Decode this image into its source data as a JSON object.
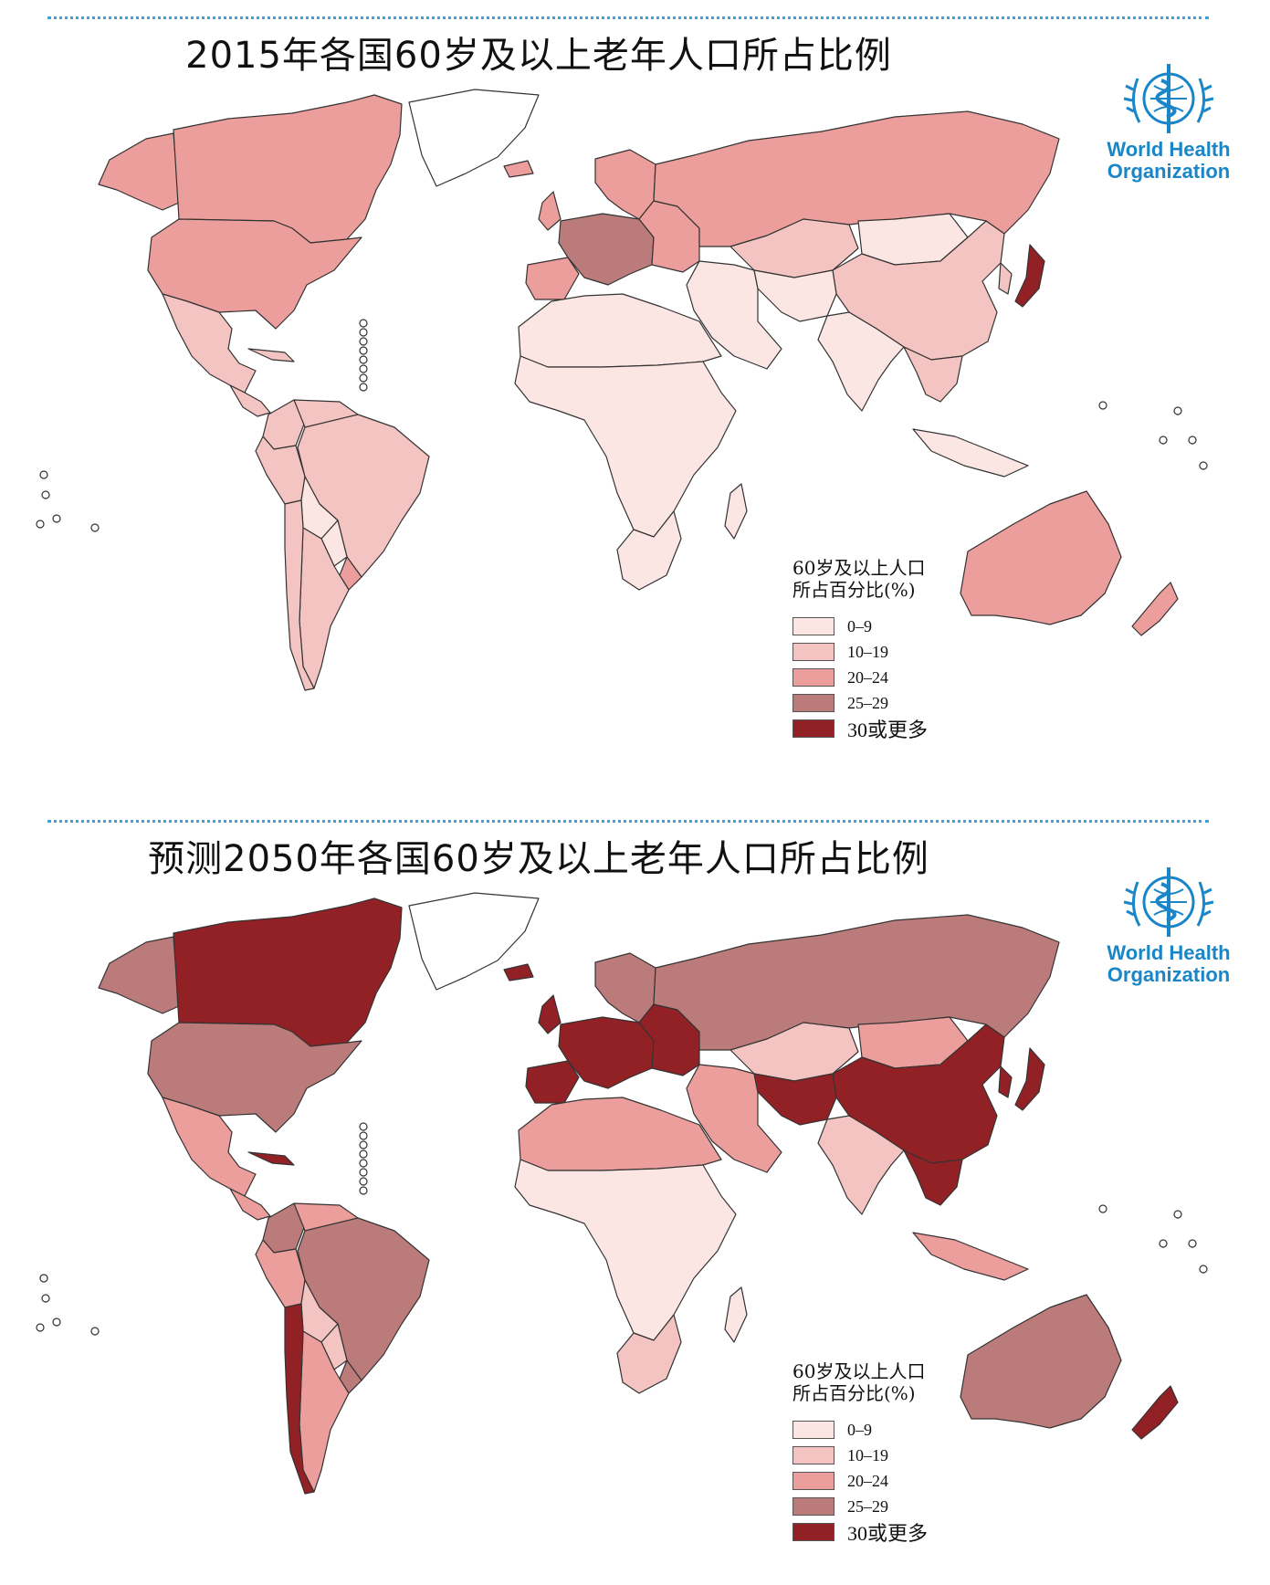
{
  "colors": {
    "c0": "#fbe6e4",
    "c1": "#f4c4c2",
    "c2": "#ec9e9c",
    "c3": "#bb7b7b",
    "c4": "#922125",
    "noData": "#d0d0d0",
    "outline": "#333333",
    "dottedLine": "#3fa0d8",
    "logoBlue": "#1a86c7"
  },
  "logo": {
    "line1": "World Health",
    "line2": "Organization",
    "icon": "who-emblem-icon"
  },
  "panels": [
    {
      "title": "2015年各国60岁及以上老年人口所占比例",
      "legend": {
        "title_line1": "60岁及以上人口",
        "title_line2": "所占百分比(%)",
        "items": [
          {
            "label": "0–9",
            "color": "c0"
          },
          {
            "label": "10–19",
            "color": "c1"
          },
          {
            "label": "20–24",
            "color": "c2"
          },
          {
            "label": "25–29",
            "color": "c3"
          },
          {
            "label": "30或更多",
            "color": "c4"
          }
        ]
      },
      "regions": {
        "canada": "c2",
        "alaska": "c2",
        "usa": "c2",
        "greenland": "none",
        "mexico": "c1",
        "centralAmerica": "c1",
        "cuba": "c1",
        "colombia": "c1",
        "venezuela": "c1",
        "brazil": "c1",
        "peru": "c1",
        "bolivia": "c0",
        "paraguay": "c0",
        "chile": "c1",
        "argentina": "c1",
        "uruguay": "c2",
        "iceland": "c2",
        "uk": "c2",
        "scandinavia": "c2",
        "iberia": "c2",
        "westernEurope": "c3",
        "easternEurope": "c2",
        "russia": "c2",
        "kazakhstan": "c1",
        "mongolia": "c0",
        "china": "c1",
        "japan": "c4",
        "korea": "c1",
        "middleEast": "c0",
        "iran": "c0",
        "india": "c0",
        "southeastAsia": "c1",
        "indonesia": "c0",
        "northAfrica": "c0",
        "subSaharanAfrica": "c0",
        "southAfrica": "c0",
        "madagascar": "c0",
        "australia": "c2",
        "newZealand": "c2"
      }
    },
    {
      "title": "预测2050年各国60岁及以上老年人口所占比例",
      "legend": {
        "title_line1": "60岁及以上人口",
        "title_line2": "所占百分比(%)",
        "items": [
          {
            "label": "0–9",
            "color": "c0"
          },
          {
            "label": "10–19",
            "color": "c1"
          },
          {
            "label": "20–24",
            "color": "c2"
          },
          {
            "label": "25–29",
            "color": "c3"
          },
          {
            "label": "30或更多",
            "color": "c4"
          }
        ]
      },
      "regions": {
        "canada": "c4",
        "alaska": "c3",
        "usa": "c3",
        "greenland": "none",
        "mexico": "c2",
        "centralAmerica": "c2",
        "cuba": "c4",
        "colombia": "c3",
        "venezuela": "c2",
        "brazil": "c3",
        "peru": "c2",
        "bolivia": "c1",
        "paraguay": "c1",
        "chile": "c4",
        "argentina": "c2",
        "uruguay": "c3",
        "iceland": "c4",
        "uk": "c4",
        "scandinavia": "c3",
        "iberia": "c4",
        "westernEurope": "c4",
        "easternEurope": "c4",
        "russia": "c3",
        "kazakhstan": "c1",
        "mongolia": "c2",
        "china": "c4",
        "japan": "c4",
        "korea": "c4",
        "middleEast": "c2",
        "iran": "c4",
        "india": "c1",
        "southeastAsia": "c4",
        "indonesia": "c2",
        "northAfrica": "c2",
        "subSaharanAfrica": "c0",
        "southAfrica": "c1",
        "madagascar": "c0",
        "australia": "c3",
        "newZealand": "c4"
      }
    }
  ]
}
